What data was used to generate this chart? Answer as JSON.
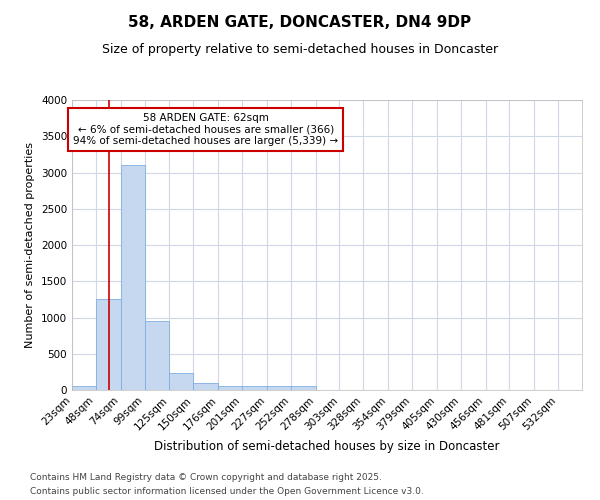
{
  "title1": "58, ARDEN GATE, DONCASTER, DN4 9DP",
  "title2": "Size of property relative to semi-detached houses in Doncaster",
  "xlabel": "Distribution of semi-detached houses by size in Doncaster",
  "ylabel": "Number of semi-detached properties",
  "annotation_title": "58 ARDEN GATE: 62sqm",
  "annotation_line1": "← 6% of semi-detached houses are smaller (366)",
  "annotation_line2": "94% of semi-detached houses are larger (5,339) →",
  "vline_x": 62,
  "bar_categories": [
    "23sqm",
    "48sqm",
    "74sqm",
    "99sqm",
    "125sqm",
    "150sqm",
    "176sqm",
    "201sqm",
    "227sqm",
    "252sqm",
    "278sqm",
    "303sqm",
    "328sqm",
    "354sqm",
    "379sqm",
    "405sqm",
    "430sqm",
    "456sqm",
    "481sqm",
    "507sqm",
    "532sqm"
  ],
  "bar_edges": [
    23,
    48,
    74,
    99,
    125,
    150,
    176,
    201,
    227,
    252,
    278,
    303,
    328,
    354,
    379,
    405,
    430,
    456,
    481,
    507,
    532,
    557
  ],
  "bar_values": [
    50,
    1260,
    3100,
    950,
    230,
    100,
    50,
    50,
    50,
    50,
    0,
    0,
    0,
    0,
    0,
    0,
    0,
    0,
    0,
    0,
    0
  ],
  "bar_color": "#c5d8f0",
  "bar_edge_color": "#7eb0de",
  "vline_color": "#cc0000",
  "annotation_box_color": "#cc0000",
  "plot_bg_color": "#ffffff",
  "fig_bg_color": "#ffffff",
  "grid_color": "#d0d8e8",
  "ylim": [
    0,
    4000
  ],
  "yticks": [
    0,
    500,
    1000,
    1500,
    2000,
    2500,
    3000,
    3500,
    4000
  ],
  "footer1": "Contains HM Land Registry data © Crown copyright and database right 2025.",
  "footer2": "Contains public sector information licensed under the Open Government Licence v3.0.",
  "title1_fontsize": 11,
  "title2_fontsize": 9,
  "ylabel_fontsize": 8,
  "xlabel_fontsize": 8.5,
  "tick_fontsize": 7.5,
  "annotation_fontsize": 7.5,
  "footer_fontsize": 6.5
}
